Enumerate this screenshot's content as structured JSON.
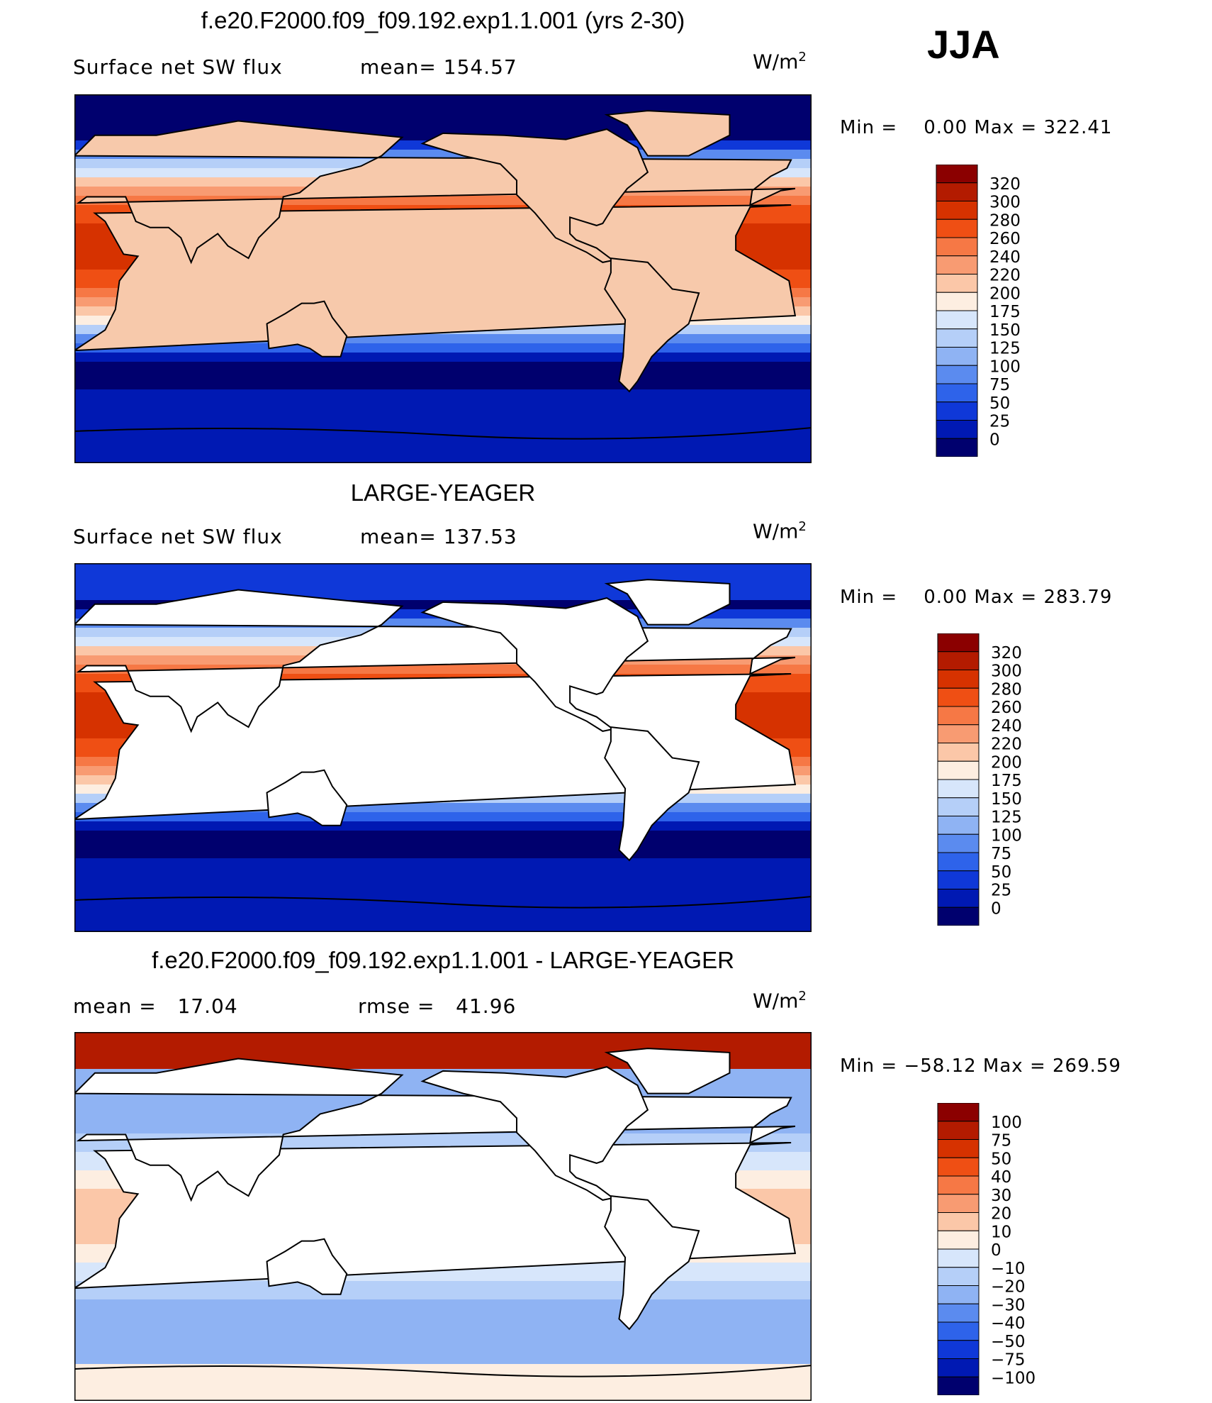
{
  "season": "JJA",
  "panels": [
    {
      "title": "f.e20.F2000.f09_f09.192.exp1.1.001 (yrs 2-30)",
      "left_label": "Surface net SW flux",
      "mid_label": "mean= 154.57",
      "units": "W/m",
      "units_sup": "2",
      "minmax": "Min =    0.00 Max = 322.41"
    },
    {
      "title": "LARGE-YEAGER",
      "left_label": "Surface net SW flux",
      "mid_label": "mean= 137.53",
      "units": "W/m",
      "units_sup": "2",
      "minmax": "Min =    0.00 Max = 283.79"
    },
    {
      "title": "f.e20.F2000.f09_f09.192.exp1.1.001 - LARGE-YEAGER",
      "left_label": "mean =   17.04",
      "mid_label": "rmse =   41.96",
      "units": "W/m",
      "units_sup": "2",
      "minmax": "Min = −58.12 Max = 269.59"
    }
  ],
  "chart_data": [
    {
      "type": "heatmap",
      "title": "f.e20.F2000.f09_f09.192.exp1.1.001 (yrs 2-30)",
      "variable": "Surface net SW flux",
      "units": "W/m2",
      "mean": 154.57,
      "min": 0.0,
      "max": 322.41,
      "colorbar_levels": [
        "320",
        "300",
        "280",
        "260",
        "240",
        "220",
        "200",
        "175",
        "150",
        "125",
        "100",
        "75",
        "50",
        "25",
        "0"
      ],
      "colorbar_colors": [
        "#8b0000",
        "#b31b00",
        "#d63200",
        "#ef4f14",
        "#f67845",
        "#f89b72",
        "#fbc7a8",
        "#fdeee1",
        "#d7e6fb",
        "#b5cff8",
        "#8fb3f3",
        "#5b8bef",
        "#2e63ea",
        "#0f38d8",
        "#0019b3",
        "#00006e"
      ]
    },
    {
      "type": "heatmap",
      "title": "LARGE-YEAGER",
      "variable": "Surface net SW flux",
      "units": "W/m2",
      "mean": 137.53,
      "min": 0.0,
      "max": 283.79,
      "colorbar_levels": [
        "320",
        "300",
        "280",
        "260",
        "240",
        "220",
        "200",
        "175",
        "150",
        "125",
        "100",
        "75",
        "50",
        "25",
        "0"
      ],
      "colorbar_colors": [
        "#8b0000",
        "#b31b00",
        "#d63200",
        "#ef4f14",
        "#f67845",
        "#f89b72",
        "#fbc7a8",
        "#fdeee1",
        "#d7e6fb",
        "#b5cff8",
        "#8fb3f3",
        "#5b8bef",
        "#2e63ea",
        "#0f38d8",
        "#0019b3",
        "#00006e"
      ]
    },
    {
      "type": "heatmap",
      "title": "f.e20.F2000.f09_f09.192.exp1.1.001 - LARGE-YEAGER",
      "units": "W/m2",
      "mean": 17.04,
      "rmse": 41.96,
      "min": -58.12,
      "max": 269.59,
      "colorbar_levels": [
        "100",
        "75",
        "50",
        "40",
        "30",
        "20",
        "10",
        "0",
        "−10",
        "−20",
        "−30",
        "−40",
        "−50",
        "−75",
        "−100"
      ],
      "colorbar_colors": [
        "#8b0000",
        "#b31b00",
        "#d63200",
        "#ef4f14",
        "#f67845",
        "#f89b72",
        "#fbc7a8",
        "#fdeee1",
        "#d7e6fb",
        "#b5cff8",
        "#8fb3f3",
        "#5b8bef",
        "#2e63ea",
        "#0f38d8",
        "#0019b3",
        "#00006e"
      ]
    }
  ]
}
